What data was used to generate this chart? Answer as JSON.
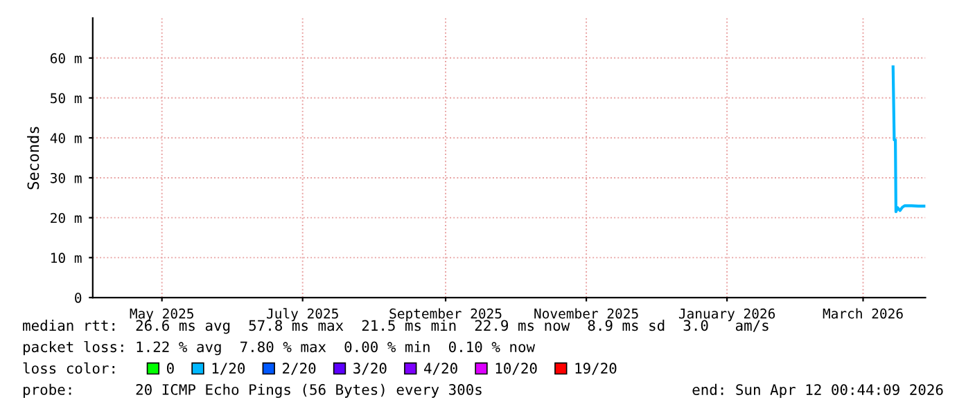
{
  "chart_data": {
    "type": "line",
    "ylabel": "Seconds",
    "x": [
      "2026-03-29T00:00",
      "2026-03-29T12:00",
      "2026-03-30T00:00",
      "2026-03-30T06:00",
      "2026-03-31T00:00",
      "2026-04-01T00:00",
      "2026-04-02T00:00",
      "2026-04-03T00:00",
      "2026-04-06T00:00",
      "2026-04-09T00:00",
      "2026-04-11T12:00"
    ],
    "series": [
      {
        "name": "0",
        "color": "#00ff00",
        "values": [
          null,
          null,
          null,
          null,
          null,
          null,
          null,
          null,
          null,
          null,
          null
        ]
      },
      {
        "name": "1/20",
        "color": "#00b8ff",
        "values": [
          57.8,
          39.5,
          39.5,
          21.5,
          22.5,
          21.8,
          22.6,
          23.0,
          23.0,
          22.9,
          22.9
        ]
      },
      {
        "name": "2/20",
        "color": "#0059ff",
        "values": [
          null,
          null,
          null,
          null,
          null,
          null,
          null,
          null,
          null,
          null,
          null
        ]
      },
      {
        "name": "3/20",
        "color": "#5e00ff",
        "values": [
          null,
          null,
          null,
          null,
          null,
          null,
          null,
          null,
          null,
          null,
          null
        ]
      },
      {
        "name": "4/20",
        "color": "#7e00ff",
        "values": [
          null,
          null,
          null,
          null,
          null,
          null,
          null,
          null,
          null,
          null,
          null
        ]
      },
      {
        "name": "10/20",
        "color": "#dd00ff",
        "values": [
          null,
          null,
          null,
          null,
          null,
          null,
          null,
          null,
          null,
          null,
          null
        ]
      },
      {
        "name": "19/20",
        "color": "#ff0000",
        "values": [
          null,
          null,
          null,
          null,
          null,
          null,
          null,
          null,
          null,
          null,
          null
        ]
      }
    ],
    "xlim": [
      "2025-04-16",
      "2026-04-12T00:44"
    ],
    "xticks": [
      {
        "value": "2025-05-16",
        "label": "May 2025"
      },
      {
        "value": "2025-07-16",
        "label": "July 2025"
      },
      {
        "value": "2025-09-16",
        "label": "September 2025"
      },
      {
        "value": "2025-11-16",
        "label": "November 2025"
      },
      {
        "value": "2026-01-16",
        "label": "January 2026"
      },
      {
        "value": "2026-03-16",
        "label": "March 2026"
      }
    ],
    "ylim": [
      0,
      70
    ],
    "yticks": [
      0,
      {
        "value": 10,
        "label": "10 m"
      },
      {
        "value": 20,
        "label": "20 m"
      },
      {
        "value": 30,
        "label": "30 m"
      },
      {
        "value": 40,
        "label": "40 m"
      },
      {
        "value": 50,
        "label": "50 m"
      },
      {
        "value": 60,
        "label": "60 m"
      }
    ],
    "grid": true,
    "legend": "bottom",
    "line_style": "solid",
    "marker": "none",
    "annotations": [
      "median rtt:  26.6 ms avg  57.8 ms max  21.5 ms min  22.9 ms now  8.9 ms sd  3.0   am/s",
      "packet loss: 1.22 % avg  7.80 % max  0.00 % min  0.10 % now",
      "loss color:",
      "probe:       20 ICMP Echo Pings (56 Bytes) every 300s",
      "end: Sun Apr 12 00:44:09 2026"
    ]
  }
}
